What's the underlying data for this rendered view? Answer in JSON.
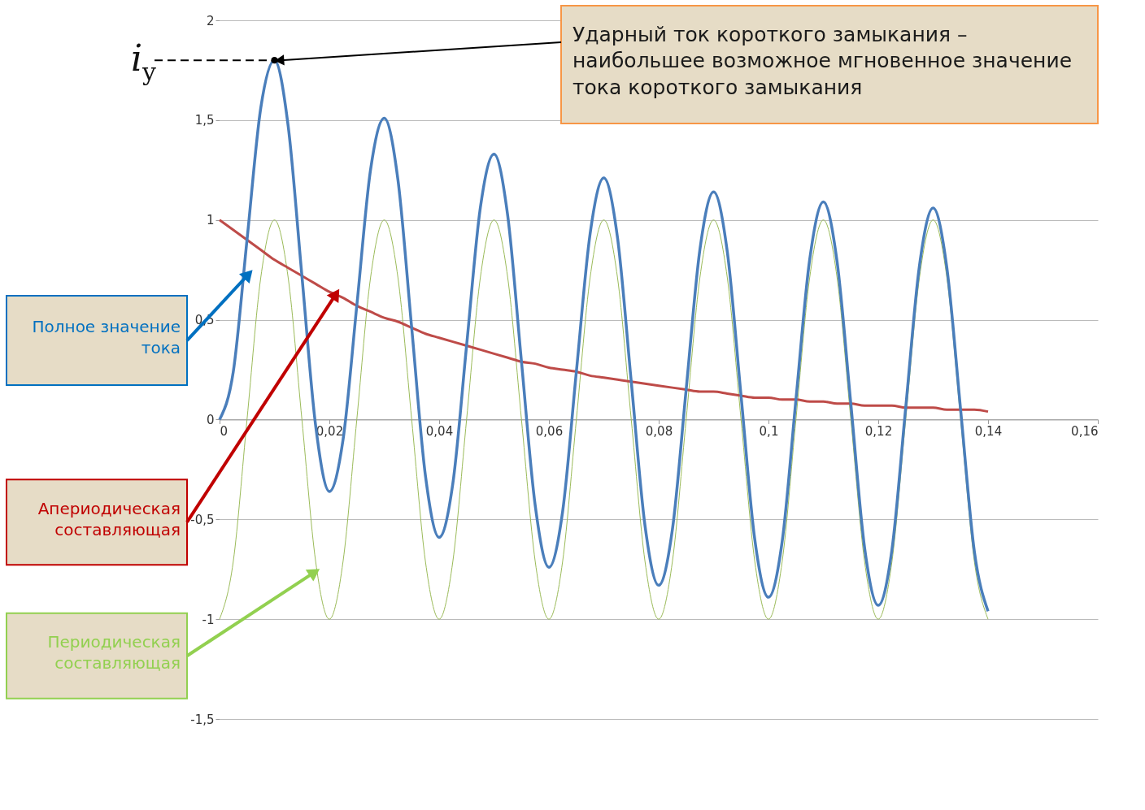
{
  "chart_data": {
    "type": "line",
    "x": [
      0,
      0.0025,
      0.005,
      0.0075,
      0.01,
      0.0125,
      0.015,
      0.0175,
      0.02,
      0.0225,
      0.025,
      0.0275,
      0.03,
      0.0325,
      0.035,
      0.0375,
      0.04,
      0.0425,
      0.045,
      0.0475,
      0.05,
      0.0525,
      0.055,
      0.0575,
      0.06,
      0.0625,
      0.065,
      0.0675,
      0.07,
      0.0725,
      0.075,
      0.0775,
      0.08,
      0.0825,
      0.085,
      0.0875,
      0.09,
      0.0925,
      0.095,
      0.0975,
      0.1,
      0.1025,
      0.105,
      0.1075,
      0.11,
      0.1125,
      0.115,
      0.1175,
      0.12,
      0.1225,
      0.125,
      0.1275,
      0.13,
      0.1325,
      0.135,
      0.1375,
      0.14
    ],
    "series": [
      {
        "color": "#4a7ebb",
        "values": [
          0,
          0.24,
          0.9,
          1.56,
          1.8,
          1.47,
          0.72,
          -0.03,
          -0.36,
          -0.1,
          0.57,
          1.25,
          1.51,
          1.2,
          0.46,
          -0.28,
          -0.59,
          -0.32,
          0.37,
          1.06,
          1.33,
          1.02,
          0.29,
          -0.43,
          -0.74,
          -0.46,
          0.24,
          0.93,
          1.21,
          0.91,
          0.19,
          -0.53,
          -0.83,
          -0.55,
          0.15,
          0.85,
          1.14,
          0.84,
          0.12,
          -0.6,
          -0.89,
          -0.61,
          0.1,
          0.8,
          1.09,
          0.79,
          0.08,
          -0.64,
          -0.93,
          -0.65,
          0.06,
          0.77,
          1.06,
          0.76,
          0.05,
          -0.66,
          -0.96
        ]
      },
      {
        "color": "#be4b48",
        "values": [
          1,
          0.95,
          0.9,
          0.85,
          0.8,
          0.76,
          0.72,
          0.68,
          0.64,
          0.61,
          0.57,
          0.54,
          0.51,
          0.49,
          0.46,
          0.43,
          0.41,
          0.39,
          0.37,
          0.35,
          0.33,
          0.31,
          0.29,
          0.28,
          0.26,
          0.25,
          0.24,
          0.22,
          0.21,
          0.2,
          0.19,
          0.18,
          0.17,
          0.16,
          0.15,
          0.14,
          0.14,
          0.13,
          0.12,
          0.11,
          0.11,
          0.1,
          0.1,
          0.09,
          0.09,
          0.08,
          0.08,
          0.07,
          0.07,
          0.07,
          0.06,
          0.06,
          0.06,
          0.05,
          0.05,
          0.05,
          0.04
        ]
      },
      {
        "color": "#9bbb59",
        "values": [
          -1,
          -0.71,
          0,
          0.71,
          1,
          0.71,
          0,
          -0.71,
          -1,
          -0.71,
          0,
          0.71,
          1,
          0.71,
          0,
          -0.71,
          -1,
          -0.71,
          0,
          0.71,
          1,
          0.71,
          0,
          -0.71,
          -1,
          -0.71,
          0,
          0.71,
          1,
          0.71,
          0,
          -0.71,
          -1,
          -0.71,
          0,
          0.71,
          1,
          0.71,
          0,
          -0.71,
          -1,
          -0.71,
          0,
          0.71,
          1,
          0.71,
          0,
          -0.71,
          -1,
          -0.71,
          0,
          0.71,
          1,
          0.71,
          0,
          -0.71,
          -1
        ]
      }
    ],
    "xlim": [
      0,
      0.16
    ],
    "xticks": [
      0,
      {
        "value": 0.02,
        "label": "0,02"
      },
      {
        "value": 0.04,
        "label": "0,04"
      },
      {
        "value": 0.06,
        "label": "0,06"
      },
      {
        "value": 0.08,
        "label": "0,08"
      },
      {
        "value": 0.1,
        "label": "0,1"
      },
      {
        "value": 0.12,
        "label": "0,12"
      },
      {
        "value": 0.14,
        "label": "0,14"
      },
      {
        "value": 0.16,
        "label": "0,16"
      }
    ],
    "ylim": [
      -1.5,
      2
    ],
    "yticks": [
      {
        "value": -1.5,
        "label": "-1,5"
      },
      -1,
      {
        "value": -0.5,
        "label": "-0,5"
      },
      0,
      {
        "value": 0.5,
        "label": "0,5"
      },
      1,
      {
        "value": 1.5,
        "label": "1,5"
      },
      2
    ],
    "grid": "y",
    "annotations": [
      {
        "text": "Ударный ток короткого замыкания – наибольшее возможное мгновенное значение тока короткого замыкания",
        "x": 0.01,
        "y": 1.8
      },
      {
        "text": "iy",
        "x": 0.01,
        "y": 1.8
      },
      {
        "text": "Полное значение тока",
        "x": 0.005,
        "y": 0.72
      },
      {
        "text": "Апериодическая составляющая",
        "x": 0.021,
        "y": 0.62
      },
      {
        "text": "Периодическая составляющая",
        "x": 0.017,
        "y": -0.77
      }
    ]
  }
}
